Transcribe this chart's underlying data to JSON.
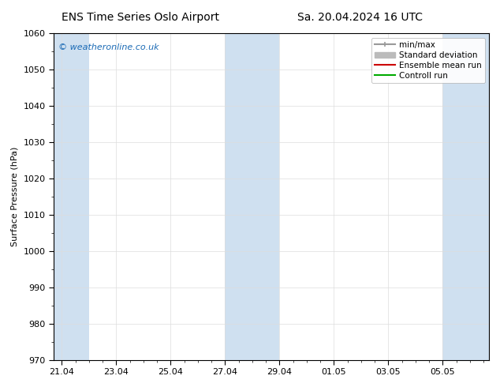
{
  "title_left": "ENS Time Series Oslo Airport",
  "title_right": "Sa. 20.04.2024 16 UTC",
  "ylabel": "Surface Pressure (hPa)",
  "ylim": [
    970,
    1060
  ],
  "yticks": [
    970,
    980,
    990,
    1000,
    1010,
    1020,
    1030,
    1040,
    1050,
    1060
  ],
  "xtick_labels": [
    "21.04",
    "23.04",
    "25.04",
    "27.04",
    "29.04",
    "01.05",
    "03.05",
    "05.05"
  ],
  "xtick_positions": [
    0,
    2,
    4,
    6,
    8,
    10,
    12,
    14
  ],
  "x_range": [
    -0.3,
    15.7
  ],
  "shaded_bands": [
    {
      "x_start": -0.3,
      "x_end": 1.0,
      "color": "#cfe0f0"
    },
    {
      "x_start": 6.0,
      "x_end": 8.0,
      "color": "#cfe0f0"
    },
    {
      "x_start": 14.0,
      "x_end": 15.7,
      "color": "#cfe0f0"
    }
  ],
  "watermark": "© weatheronline.co.uk",
  "watermark_color": "#1a6ab5",
  "legend_items": [
    {
      "label": "min/max",
      "type": "errorbar",
      "color": "#999999",
      "lw": 1.5
    },
    {
      "label": "Standard deviation",
      "type": "bar",
      "color": "#bbbbbb",
      "lw": 8
    },
    {
      "label": "Ensemble mean run",
      "type": "line",
      "color": "#cc0000",
      "lw": 1.5
    },
    {
      "label": "Controll run",
      "type": "line",
      "color": "#00aa00",
      "lw": 1.5
    }
  ],
  "bg_color": "#ffffff",
  "plot_bg_color": "#ffffff",
  "grid_color": "#dddddd",
  "tick_color": "#000000",
  "font_size": 8,
  "title_fontsize": 10,
  "watermark_fontsize": 8
}
